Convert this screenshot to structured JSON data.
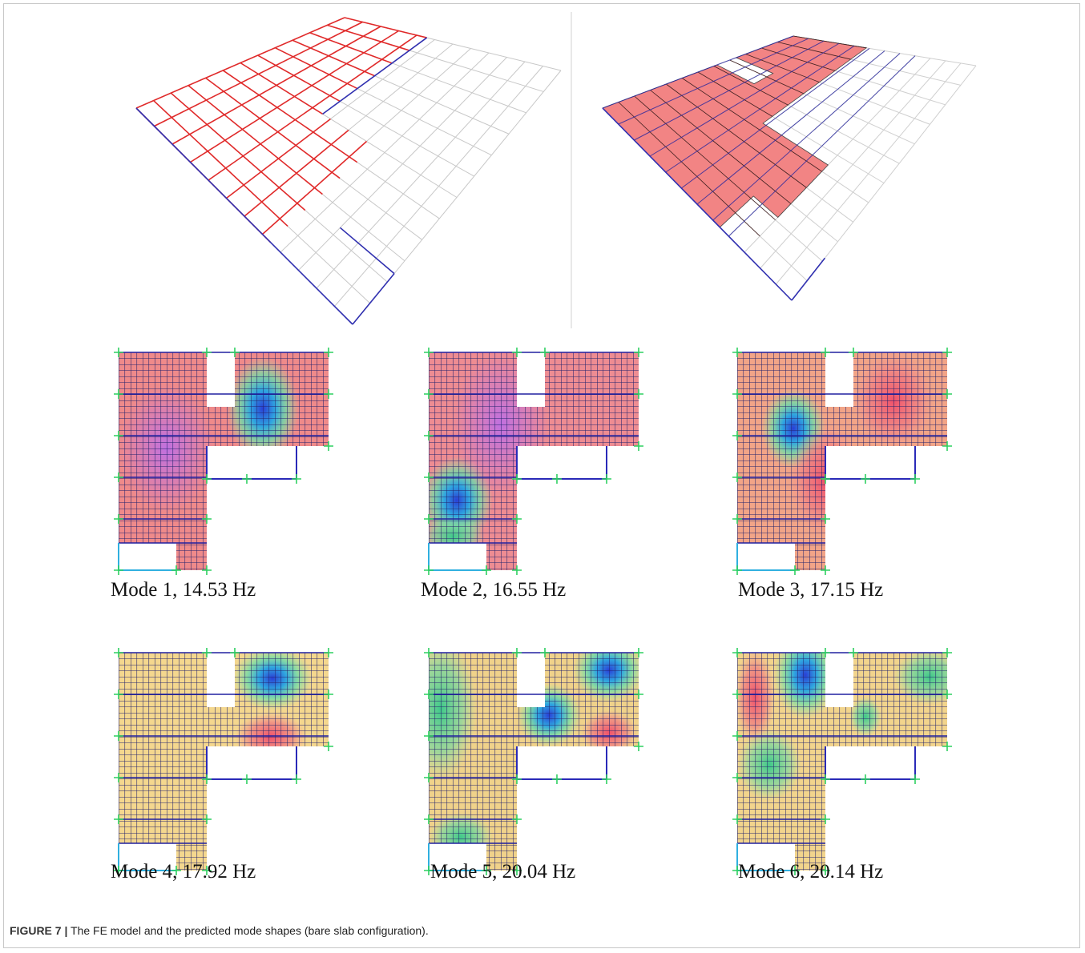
{
  "figure": {
    "modes": [
      "Mode 1, 14.53 Hz",
      "Mode 2, 16.55 Hz",
      "Mode 3, 17.15 Hz",
      "Mode 4, 17.92 Hz",
      "Mode 5, 20.04 Hz",
      "Mode 6, 20.14 Hz"
    ],
    "caption": {
      "label": "FIGURE 7 |",
      "text": "The FE model and the predicted mode shapes (bare slab configuration)."
    }
  }
}
